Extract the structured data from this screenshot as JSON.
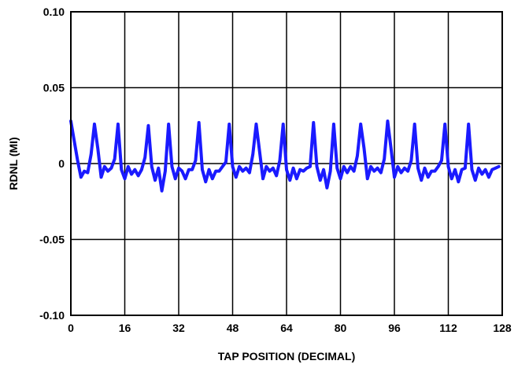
{
  "chart_data": {
    "type": "line",
    "xlabel": "TAP POSITION (DECIMAL)",
    "ylabel": "RDNL (MI)",
    "xlim": [
      0,
      128
    ],
    "ylim": [
      -0.1,
      0.1
    ],
    "x_ticks": [
      0,
      16,
      32,
      48,
      64,
      80,
      96,
      112,
      128
    ],
    "x_tick_labels": [
      "0",
      "16",
      "32",
      "48",
      "64",
      "80",
      "96",
      "112",
      "128"
    ],
    "y_ticks": [
      -0.1,
      -0.05,
      0,
      0.05,
      0.1
    ],
    "y_tick_labels": [
      "-0.10",
      "-0.05",
      "0",
      "0.05",
      "0.10"
    ],
    "grid": true,
    "line_color": "#1a1aff",
    "series": [
      {
        "x": [
          0,
          1,
          2,
          3,
          4,
          5,
          6,
          7,
          8,
          9,
          10,
          11,
          12,
          13,
          14,
          15,
          16,
          17,
          18,
          19,
          20,
          21,
          22,
          23,
          24,
          25,
          26,
          27,
          28,
          29,
          30,
          31,
          32,
          33,
          34,
          35,
          36,
          37,
          38,
          39,
          40,
          41,
          42,
          43,
          44,
          45,
          46,
          47,
          48,
          49,
          50,
          51,
          52,
          53,
          54,
          55,
          56,
          57,
          58,
          59,
          60,
          61,
          62,
          63,
          64,
          65,
          66,
          67,
          68,
          69,
          70,
          71,
          72,
          73,
          74,
          75,
          76,
          77,
          78,
          79,
          80,
          81,
          82,
          83,
          84,
          85,
          86,
          87,
          88,
          89,
          90,
          91,
          92,
          93,
          94,
          95,
          96,
          97,
          98,
          99,
          100,
          101,
          102,
          103,
          104,
          105,
          106,
          107,
          108,
          109,
          110,
          111,
          112,
          113,
          114,
          115,
          116,
          117,
          118,
          119,
          120,
          121,
          122,
          123,
          124,
          125,
          126,
          127
        ],
        "y": [
          0.028,
          0.015,
          0.002,
          -0.009,
          -0.005,
          -0.006,
          0.006,
          0.026,
          0.01,
          -0.009,
          -0.002,
          -0.005,
          -0.003,
          0.003,
          0.026,
          -0.004,
          -0.01,
          -0.002,
          -0.007,
          -0.004,
          -0.008,
          -0.004,
          0.004,
          0.025,
          -0.002,
          -0.011,
          -0.003,
          -0.018,
          -0.005,
          0.026,
          -0.002,
          -0.01,
          -0.003,
          -0.005,
          -0.01,
          -0.004,
          -0.004,
          0.002,
          0.027,
          -0.004,
          -0.012,
          -0.004,
          -0.01,
          -0.005,
          -0.005,
          -0.002,
          0.001,
          0.026,
          -0.002,
          -0.009,
          -0.002,
          -0.005,
          -0.003,
          -0.006,
          0.006,
          0.026,
          0.008,
          -0.01,
          -0.002,
          -0.005,
          -0.003,
          -0.008,
          0.002,
          0.026,
          -0.004,
          -0.011,
          -0.003,
          -0.01,
          -0.004,
          -0.005,
          -0.003,
          -0.002,
          0.027,
          -0.002,
          -0.011,
          -0.004,
          -0.016,
          -0.005,
          0.026,
          -0.003,
          -0.01,
          -0.002,
          -0.006,
          -0.002,
          -0.005,
          0.005,
          0.026,
          0.01,
          -0.01,
          -0.002,
          -0.005,
          -0.003,
          -0.006,
          0.003,
          0.028,
          0.01,
          -0.009,
          -0.002,
          -0.006,
          -0.003,
          -0.005,
          0.002,
          0.026,
          -0.003,
          -0.011,
          -0.003,
          -0.009,
          -0.005,
          -0.005,
          -0.002,
          0.002,
          0.026,
          -0.002,
          -0.01,
          -0.004,
          -0.012,
          -0.004,
          -0.003,
          0.026,
          -0.004,
          -0.011,
          -0.003,
          -0.007,
          -0.004,
          -0.009,
          -0.004,
          -0.003,
          -0.002
        ]
      }
    ]
  }
}
